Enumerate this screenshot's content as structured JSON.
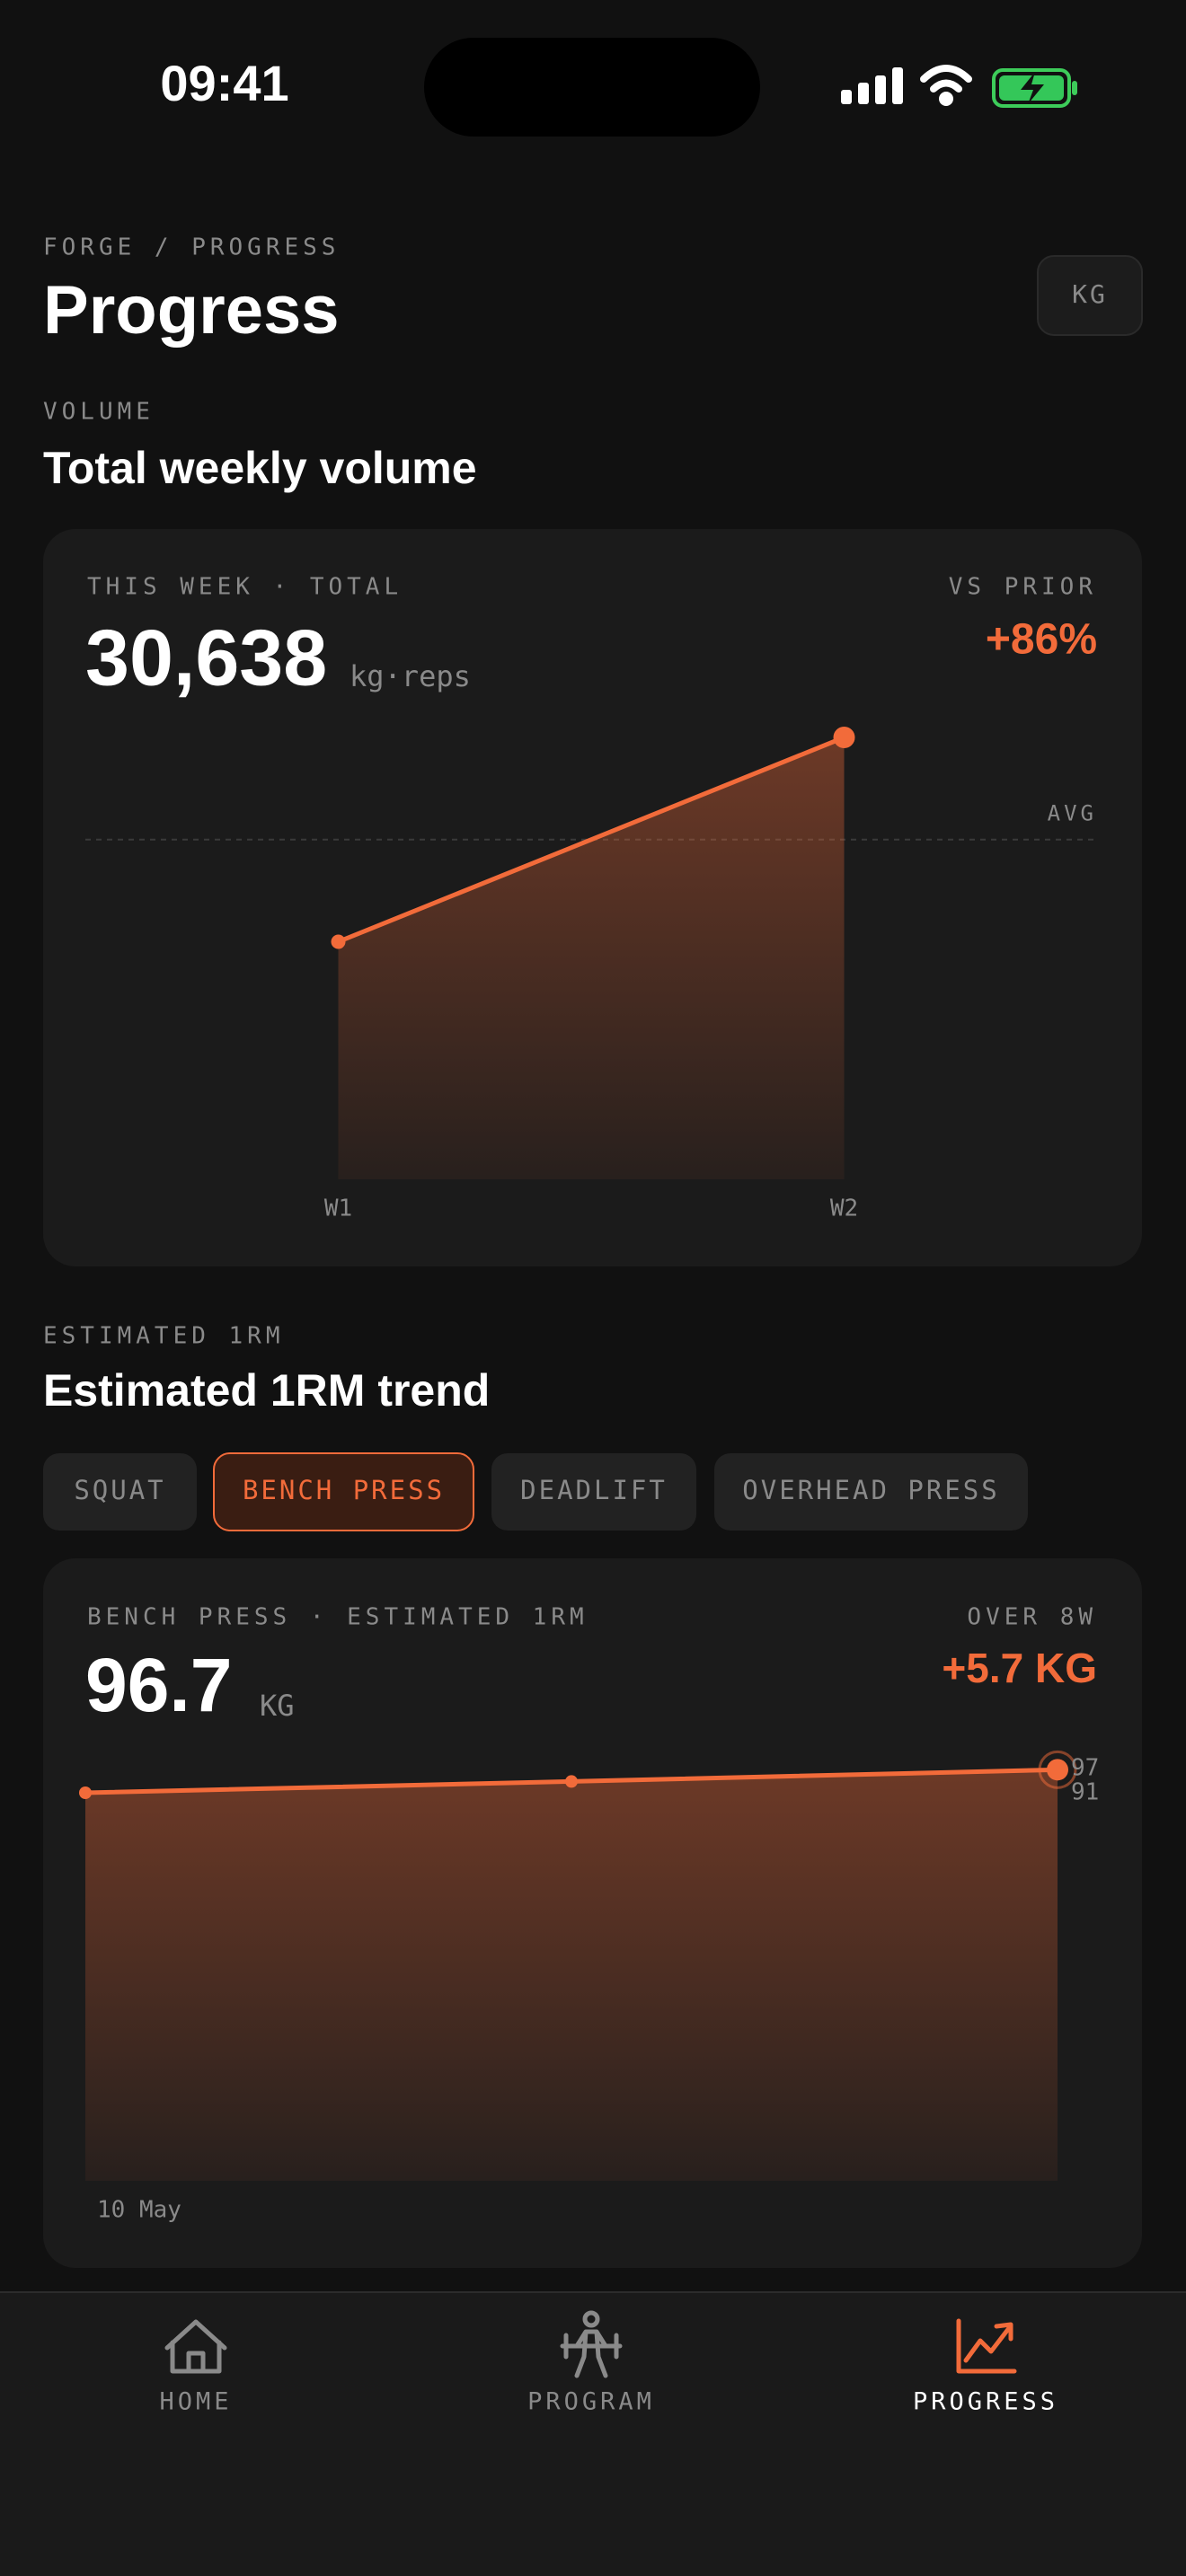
{
  "status_bar": {
    "time": "09:41"
  },
  "header": {
    "breadcrumb": "FORGE / PROGRESS",
    "title": "Progress",
    "unit_button": "KG"
  },
  "volume_section": {
    "eyebrow": "VOLUME",
    "title": "Total weekly volume",
    "card": {
      "label": "THIS WEEK · TOTAL",
      "total": "30,638",
      "unit": "kg·reps",
      "compare_label": "VS PRIOR",
      "change": "+86%"
    }
  },
  "one_rm_section": {
    "eyebrow": "ESTIMATED 1RM",
    "title": "Estimated 1RM trend",
    "tabs": {
      "items": [
        "SQUAT",
        "BENCH PRESS",
        "DEADLIFT",
        "OVERHEAD PRESS"
      ],
      "selected": 1
    },
    "card": {
      "label": "BENCH PRESS · ESTIMATED 1RM",
      "value": "96.7",
      "unit": "KG",
      "compare_label": "OVER 8W",
      "change": "+5.7 KG"
    }
  },
  "chart_data": [
    {
      "type": "area",
      "categories": [
        "W1",
        "W2"
      ],
      "values": [
        16470,
        30638
      ],
      "avg": 23555,
      "avg_label": "AVG",
      "ylim": [
        0,
        30638
      ],
      "color": "#f26b3a"
    },
    {
      "type": "area",
      "categories": [
        "10 May",
        null,
        null
      ],
      "values": [
        91,
        93.8,
        96.7
      ],
      "ylim": [
        91,
        97
      ],
      "yticks": [
        91,
        97
      ],
      "color": "#f26b3a"
    }
  ],
  "nav": {
    "items": [
      "HOME",
      "PROGRAM",
      "PROGRESS"
    ],
    "active": 2
  }
}
